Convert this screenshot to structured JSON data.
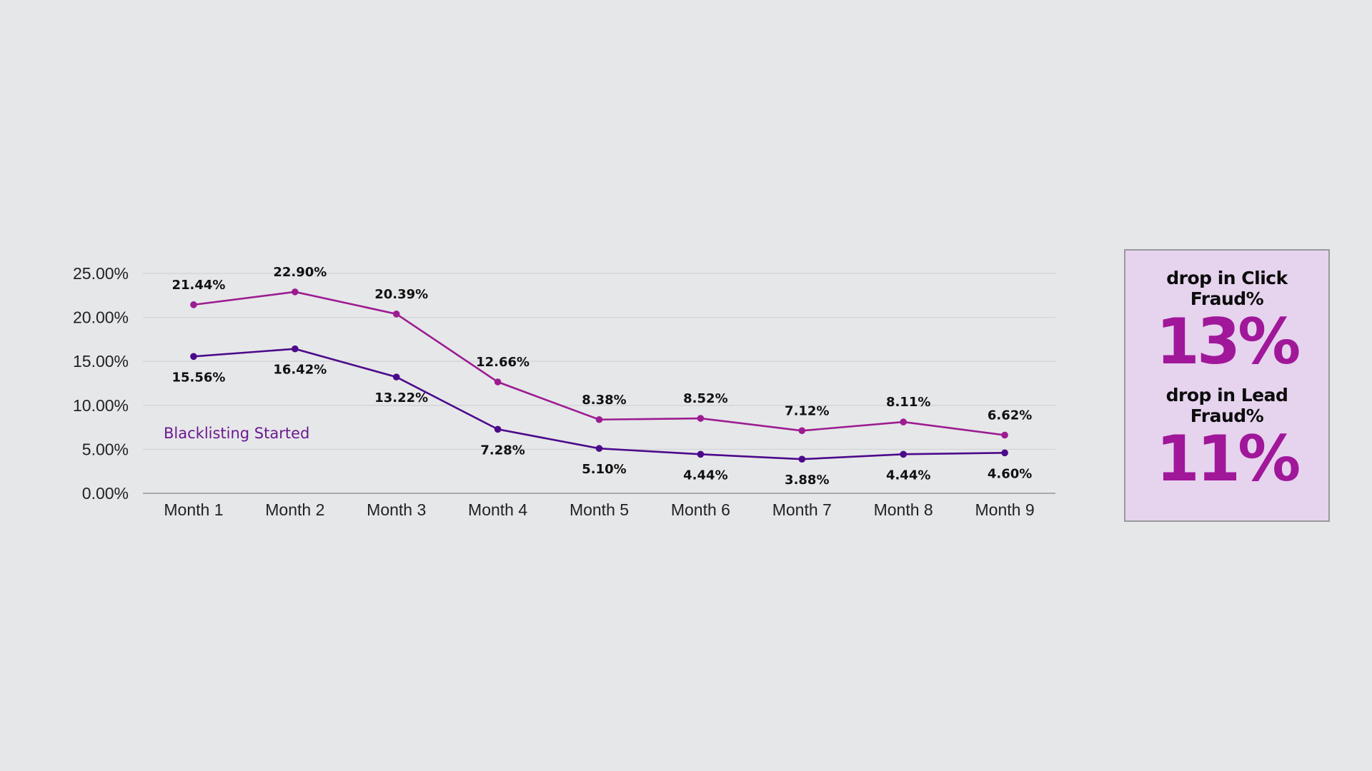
{
  "chart_data": {
    "type": "line",
    "categories": [
      "Month 1",
      "Month 2",
      "Month 3",
      "Month 4",
      "Month 5",
      "Month 6",
      "Month 7",
      "Month 8",
      "Month 9"
    ],
    "series": [
      {
        "values": [
          21.44,
          22.9,
          20.39,
          12.66,
          8.38,
          8.52,
          7.12,
          8.11,
          6.62
        ],
        "labels": [
          "21.44%",
          "22.90%",
          "20.39%",
          "12.66%",
          "8.38%",
          "8.52%",
          "7.12%",
          "8.11%",
          "6.62%"
        ],
        "color": "#9c1c91",
        "label_position": "above"
      },
      {
        "values": [
          15.56,
          16.42,
          13.22,
          7.28,
          5.1,
          4.44,
          3.88,
          4.44,
          4.6
        ],
        "labels": [
          "15.56%",
          "16.42%",
          "13.22%",
          "7.28%",
          "5.10%",
          "4.44%",
          "3.88%",
          "4.44%",
          "4.60%"
        ],
        "color": "#4b0a8a",
        "label_position": "below"
      }
    ],
    "ylim": [
      0,
      25
    ],
    "yticks": [
      "0.00%",
      "5.00%",
      "10.00%",
      "15.00%",
      "20.00%",
      "25.00%"
    ],
    "grid": true,
    "annotation": "Blacklisting Started",
    "annotation_color": "#6a1b8f"
  },
  "kpi": [
    {
      "label": "drop in Click Fraud%",
      "value": "13%"
    },
    {
      "label": "drop in Lead Fraud%",
      "value": "11%"
    }
  ],
  "colors": {
    "background": "#e6e7e9",
    "kpi_bg": "#e6d3ee",
    "kpi_value": "#a0179a"
  }
}
